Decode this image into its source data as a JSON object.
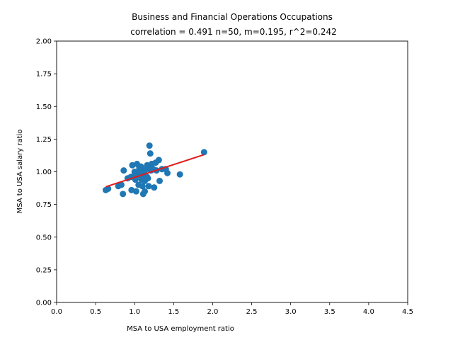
{
  "chart_data": {
    "type": "scatter",
    "title": "Business and Financial Operations Occupations",
    "subtitle": "correlation = 0.491 n=50, m=0.195, r^2=0.242",
    "xlabel": "MSA to USA employment ratio",
    "ylabel": "MSA to USA salary ratio",
    "xlim": [
      0,
      4.5
    ],
    "ylim": [
      0,
      2.0
    ],
    "xticks": [
      "0.0",
      "0.5",
      "1.0",
      "1.5",
      "2.0",
      "2.5",
      "3.0",
      "3.5",
      "4.0",
      "4.5"
    ],
    "yticks": [
      "0.00",
      "0.25",
      "0.50",
      "0.75",
      "1.00",
      "1.25",
      "1.50",
      "1.75",
      "2.00"
    ],
    "grid": false,
    "colors": {
      "points": "#1f77b4",
      "fit_line": "#e41a1c"
    },
    "points": [
      {
        "x": 0.63,
        "y": 0.86
      },
      {
        "x": 0.66,
        "y": 0.87
      },
      {
        "x": 0.79,
        "y": 0.89
      },
      {
        "x": 0.83,
        "y": 0.9
      },
      {
        "x": 0.85,
        "y": 0.83
      },
      {
        "x": 0.86,
        "y": 1.01
      },
      {
        "x": 0.91,
        "y": 0.95
      },
      {
        "x": 0.95,
        "y": 0.96
      },
      {
        "x": 0.96,
        "y": 0.86
      },
      {
        "x": 0.97,
        "y": 1.05
      },
      {
        "x": 1.0,
        "y": 1.0
      },
      {
        "x": 1.01,
        "y": 0.94
      },
      {
        "x": 1.02,
        "y": 0.85
      },
      {
        "x": 1.03,
        "y": 1.06
      },
      {
        "x": 1.04,
        "y": 0.99
      },
      {
        "x": 1.05,
        "y": 0.9
      },
      {
        "x": 1.06,
        "y": 1.03
      },
      {
        "x": 1.07,
        "y": 0.97
      },
      {
        "x": 1.08,
        "y": 1.01
      },
      {
        "x": 1.09,
        "y": 0.94
      },
      {
        "x": 1.1,
        "y": 0.89
      },
      {
        "x": 1.11,
        "y": 0.83
      },
      {
        "x": 1.12,
        "y": 0.99
      },
      {
        "x": 1.13,
        "y": 0.85
      },
      {
        "x": 1.14,
        "y": 0.97
      },
      {
        "x": 1.15,
        "y": 1.02
      },
      {
        "x": 1.16,
        "y": 1.05
      },
      {
        "x": 1.17,
        "y": 0.95
      },
      {
        "x": 1.18,
        "y": 0.89
      },
      {
        "x": 1.19,
        "y": 1.2
      },
      {
        "x": 1.2,
        "y": 1.14
      },
      {
        "x": 1.2,
        "y": 1.03
      },
      {
        "x": 1.21,
        "y": 1.01
      },
      {
        "x": 1.22,
        "y": 1.06
      },
      {
        "x": 1.25,
        "y": 0.88
      },
      {
        "x": 1.27,
        "y": 1.07
      },
      {
        "x": 1.28,
        "y": 1.01
      },
      {
        "x": 1.31,
        "y": 1.09
      },
      {
        "x": 1.32,
        "y": 0.93
      },
      {
        "x": 1.35,
        "y": 1.02
      },
      {
        "x": 1.4,
        "y": 1.02
      },
      {
        "x": 1.42,
        "y": 0.99
      },
      {
        "x": 1.58,
        "y": 0.98
      },
      {
        "x": 1.89,
        "y": 1.15
      },
      {
        "x": 1.0,
        "y": 0.96
      },
      {
        "x": 1.13,
        "y": 0.93
      },
      {
        "x": 0.99,
        "y": 0.97
      },
      {
        "x": 1.08,
        "y": 1.04
      },
      {
        "x": 1.16,
        "y": 0.96
      },
      {
        "x": 1.24,
        "y": 1.02
      }
    ],
    "fit_line": {
      "x": [
        0.63,
        1.89
      ],
      "y": [
        0.885,
        1.131
      ]
    }
  }
}
